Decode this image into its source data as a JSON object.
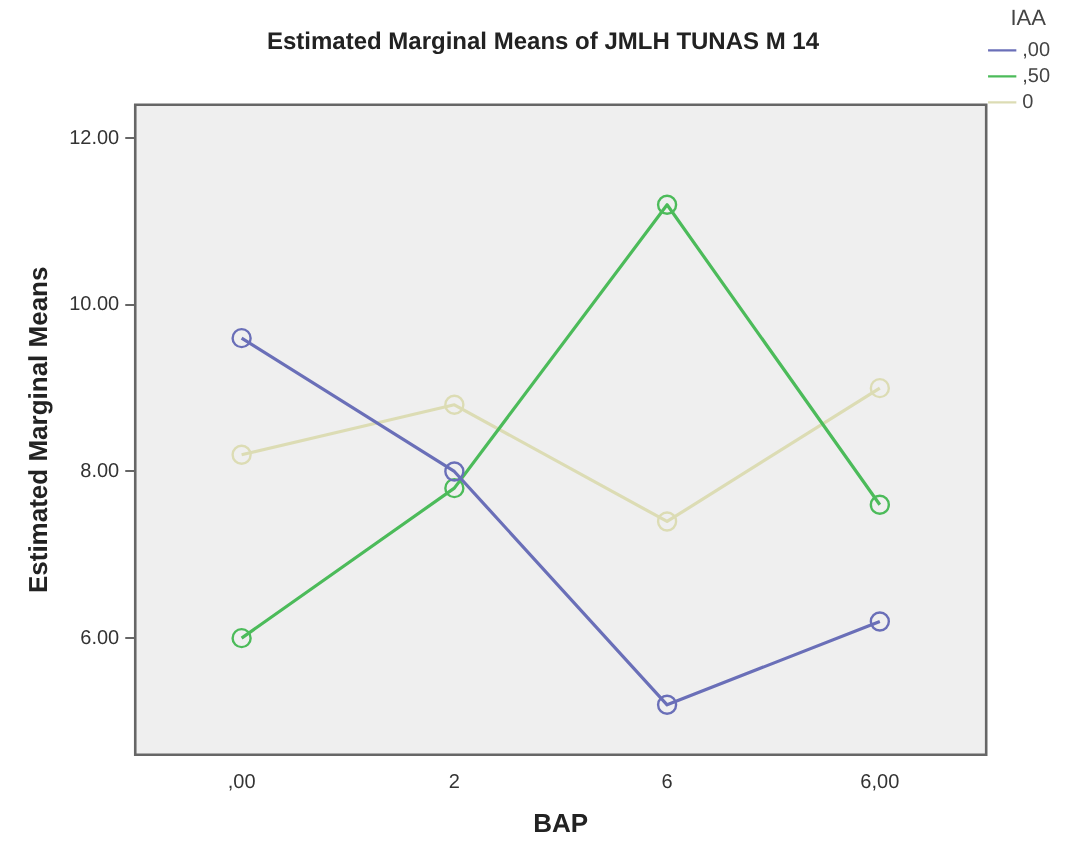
{
  "chart_data": {
    "type": "line",
    "title": "Estimated Marginal Means of JMLH TUNAS M 14",
    "xlabel": "BAP",
    "ylabel": "Estimated Marginal Means",
    "legend_title": "IAA",
    "legend": "top right",
    "marker": "circle",
    "line_style": "solid",
    "categories": [
      ",00",
      "2",
      "6",
      "6,00"
    ],
    "ylim": [
      4.6,
      12.4
    ],
    "yticks": [
      {
        "value": 6,
        "label": "6.00"
      },
      {
        "value": 8,
        "label": "8.00"
      },
      {
        "value": 10,
        "label": "10.00"
      },
      {
        "value": 12,
        "label": "12.00"
      }
    ],
    "series": [
      {
        "name": ",00",
        "color": "#6a6fb8",
        "values": [
          9.6,
          8.0,
          5.2,
          6.2
        ]
      },
      {
        "name": ",50",
        "color": "#4cbb5a",
        "values": [
          6.0,
          7.8,
          11.2,
          7.6
        ]
      },
      {
        "name": "0",
        "color": "#dcdcb4",
        "values": [
          8.2,
          8.8,
          7.4,
          9.0
        ]
      }
    ]
  }
}
